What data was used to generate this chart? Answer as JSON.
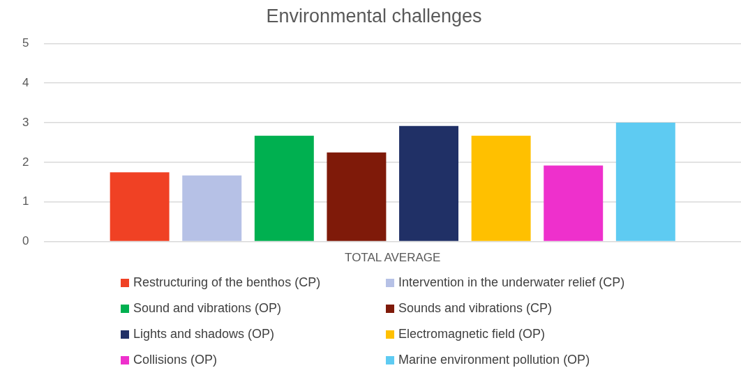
{
  "chart_data": {
    "type": "bar",
    "title": "Environmental challenges",
    "categories": [
      "TOTAL AVERAGE"
    ],
    "series": [
      {
        "name": "Restructuring of the benthos (CP)",
        "color": "#f04124",
        "values": [
          1.75
        ]
      },
      {
        "name": "Intervention in the underwater relief (CP)",
        "color": "#b6c1e6",
        "values": [
          1.67
        ]
      },
      {
        "name": "Sound and vibrations (OP)",
        "color": "#00b050",
        "values": [
          2.67
        ]
      },
      {
        "name": "Sounds and vibrations (CP)",
        "color": "#7f1a09",
        "values": [
          2.25
        ]
      },
      {
        "name": "Lights and shadows (OP)",
        "color": "#203066",
        "values": [
          2.92
        ]
      },
      {
        "name": "Electromagnetic field (OP)",
        "color": "#ffc000",
        "values": [
          2.67
        ]
      },
      {
        "name": "Collisions (OP)",
        "color": "#ee30cc",
        "values": [
          1.92
        ]
      },
      {
        "name": "Marine environment pollution (OP)",
        "color": "#5ecbf2",
        "values": [
          3
        ]
      }
    ],
    "ylim": [
      0,
      5
    ],
    "yticks": [
      0,
      1,
      2,
      3,
      4,
      5
    ],
    "grid": "y",
    "legend": "bottom"
  }
}
